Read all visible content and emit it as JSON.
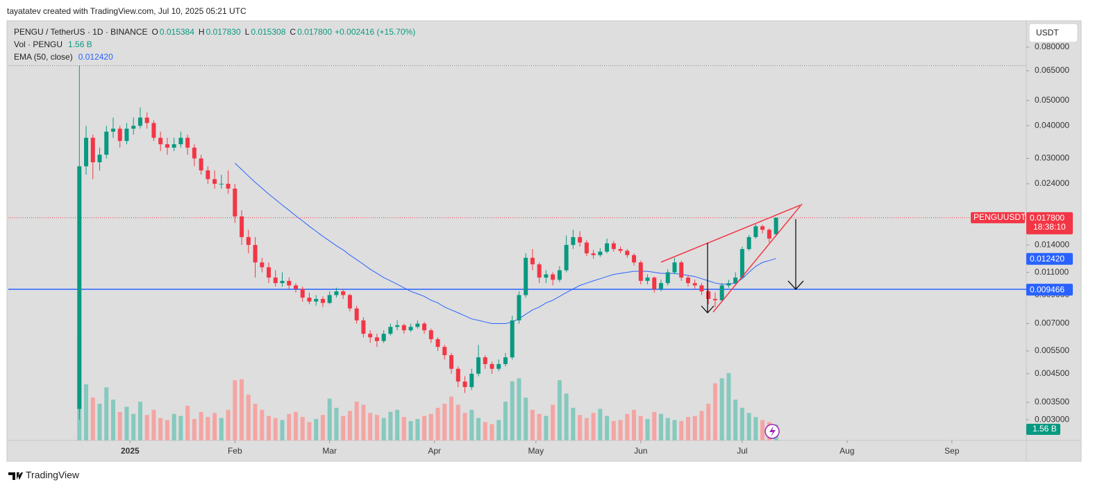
{
  "header": {
    "credit": "tayatatev created with TradingView.com, Jul 10, 2025 05:21 UTC",
    "logo": "TradingView"
  },
  "chart_data": {
    "type": "candlestick",
    "legend": {
      "symbol": "PENGU / TetherUS · 1D · BINANCE",
      "ohlc": [
        {
          "key": "O",
          "value": "0.015384"
        },
        {
          "key": "H",
          "value": "0.017830"
        },
        {
          "key": "L",
          "value": "0.015308"
        },
        {
          "key": "C",
          "value": "0.017800"
        }
      ],
      "change": "+0.002416 (+15.70%)",
      "volume_name": "Vol · PENGU",
      "volume_value": "1.56 B",
      "ema_name": "EMA (50, close)",
      "ema_value": "0.012420"
    },
    "currency": "USDT",
    "log_scale": true,
    "grid": false,
    "up_color": "#089981",
    "down_color": "#f23645",
    "volume_up_color": "#86c9be",
    "volume_down_color": "#f4a5a3",
    "ema_color": "#2962ff",
    "hline_color": "#2962ff",
    "ylim": [
      0.0025,
      0.1009
    ],
    "yticks": [
      {
        "value": 0.08,
        "label": "0.080000"
      },
      {
        "value": 0.065,
        "label": "0.065000"
      },
      {
        "value": 0.05,
        "label": "0.050000"
      },
      {
        "value": 0.04,
        "label": "0.040000"
      },
      {
        "value": 0.03,
        "label": "0.030000"
      },
      {
        "value": 0.024,
        "label": "0.024000"
      },
      {
        "value": 0.014,
        "label": "0.014000"
      },
      {
        "value": 0.011,
        "label": "0.011000"
      },
      {
        "value": 0.009,
        "label": "0.009000"
      },
      {
        "value": 0.007,
        "label": "0.007000"
      },
      {
        "value": 0.0055,
        "label": "0.005500"
      },
      {
        "value": 0.0045,
        "label": "0.004500"
      },
      {
        "value": 0.0035,
        "label": "0.003500"
      },
      {
        "value": 0.003,
        "label": "0.003000"
      }
    ],
    "xlim": [
      -10.5,
      140
    ],
    "xticks": [
      {
        "value": 7.5,
        "label": "2025"
      },
      {
        "value": 23,
        "label": "Feb"
      },
      {
        "value": 37,
        "label": "Mar"
      },
      {
        "value": 52.5,
        "label": "Apr"
      },
      {
        "value": 67.5,
        "label": "May"
      },
      {
        "value": 83,
        "label": "Jun"
      },
      {
        "value": 98,
        "label": "Jul"
      },
      {
        "value": 113.5,
        "label": "Aug"
      },
      {
        "value": 129,
        "label": "Sep"
      }
    ],
    "categories": [
      null,
      null,
      null,
      null,
      null,
      null,
      null,
      null,
      null,
      null,
      null,
      null,
      null,
      null,
      null,
      null,
      null,
      null,
      null,
      null,
      null,
      null,
      null,
      null,
      null,
      null,
      null,
      null,
      null,
      null,
      null,
      null,
      null,
      null,
      null,
      null,
      null,
      null,
      null,
      null,
      null,
      null,
      null,
      null,
      null,
      null,
      null,
      null,
      null,
      null,
      null,
      null,
      null,
      null,
      null,
      null,
      null,
      null,
      null,
      null,
      null,
      null,
      null,
      null,
      null,
      null,
      null,
      null,
      null,
      null,
      null,
      null,
      null,
      null,
      null,
      null,
      null,
      null,
      null,
      null,
      null,
      null,
      null,
      null,
      null,
      null,
      null,
      null,
      null,
      null,
      null,
      null,
      null,
      null,
      null,
      null,
      null,
      null,
      null,
      null,
      null,
      null,
      null,
      null
    ],
    "ohlc": [
      [
        0.0033,
        0.068,
        0.003,
        0.028
      ],
      [
        0.028,
        0.04,
        0.026,
        0.036
      ],
      [
        0.036,
        0.037,
        0.025,
        0.029
      ],
      [
        0.029,
        0.033,
        0.027,
        0.031
      ],
      [
        0.031,
        0.04,
        0.03,
        0.038
      ],
      [
        0.038,
        0.043,
        0.036,
        0.039
      ],
      [
        0.039,
        0.04,
        0.033,
        0.035
      ],
      [
        0.035,
        0.041,
        0.034,
        0.039
      ],
      [
        0.039,
        0.043,
        0.037,
        0.04
      ],
      [
        0.04,
        0.047,
        0.039,
        0.043
      ],
      [
        0.043,
        0.045,
        0.039,
        0.041
      ],
      [
        0.041,
        0.042,
        0.035,
        0.036
      ],
      [
        0.036,
        0.038,
        0.032,
        0.034
      ],
      [
        0.034,
        0.036,
        0.031,
        0.033
      ],
      [
        0.033,
        0.036,
        0.032,
        0.034
      ],
      [
        0.034,
        0.038,
        0.033,
        0.036
      ],
      [
        0.036,
        0.037,
        0.031,
        0.033
      ],
      [
        0.033,
        0.034,
        0.028,
        0.03
      ],
      [
        0.03,
        0.031,
        0.026,
        0.027
      ],
      [
        0.027,
        0.028,
        0.024,
        0.025
      ],
      [
        0.025,
        0.027,
        0.023,
        0.024
      ],
      [
        0.024,
        0.026,
        0.023,
        0.024
      ],
      [
        0.024,
        0.027,
        0.022,
        0.023
      ],
      [
        0.023,
        0.024,
        0.017,
        0.018
      ],
      [
        0.018,
        0.019,
        0.014,
        0.015
      ],
      [
        0.015,
        0.016,
        0.013,
        0.014
      ],
      [
        0.014,
        0.015,
        0.0105,
        0.012
      ],
      [
        0.012,
        0.0125,
        0.011,
        0.0115
      ],
      [
        0.0115,
        0.012,
        0.01,
        0.0105
      ],
      [
        0.0105,
        0.0112,
        0.0097,
        0.01
      ],
      [
        0.01,
        0.011,
        0.0097,
        0.0102
      ],
      [
        0.0102,
        0.0105,
        0.0095,
        0.0098
      ],
      [
        0.0098,
        0.01,
        0.0092,
        0.0095
      ],
      [
        0.0095,
        0.0097,
        0.0085,
        0.0088
      ],
      [
        0.0088,
        0.0092,
        0.0083,
        0.0085
      ],
      [
        0.0085,
        0.009,
        0.0082,
        0.0087
      ],
      [
        0.0087,
        0.0089,
        0.0081,
        0.0084
      ],
      [
        0.0084,
        0.0093,
        0.0083,
        0.009
      ],
      [
        0.009,
        0.0096,
        0.0088,
        0.0093
      ],
      [
        0.0093,
        0.0095,
        0.0087,
        0.009
      ],
      [
        0.009,
        0.0091,
        0.0078,
        0.008
      ],
      [
        0.008,
        0.0082,
        0.007,
        0.0072
      ],
      [
        0.0072,
        0.0074,
        0.0062,
        0.0064
      ],
      [
        0.0064,
        0.0066,
        0.0059,
        0.0062
      ],
      [
        0.0062,
        0.0064,
        0.0057,
        0.006
      ],
      [
        0.006,
        0.0066,
        0.0059,
        0.0064
      ],
      [
        0.0064,
        0.007,
        0.0063,
        0.0068
      ],
      [
        0.0068,
        0.0072,
        0.0066,
        0.0069
      ],
      [
        0.0069,
        0.007,
        0.0064,
        0.0066
      ],
      [
        0.0066,
        0.007,
        0.0065,
        0.0068
      ],
      [
        0.0068,
        0.0072,
        0.0067,
        0.007
      ],
      [
        0.007,
        0.0071,
        0.0064,
        0.0066
      ],
      [
        0.0066,
        0.0067,
        0.0059,
        0.0061
      ],
      [
        0.0061,
        0.0062,
        0.0055,
        0.0057
      ],
      [
        0.0057,
        0.0058,
        0.0051,
        0.0053
      ],
      [
        0.0053,
        0.0054,
        0.0045,
        0.0047
      ],
      [
        0.0047,
        0.0048,
        0.004,
        0.0042
      ],
      [
        0.0042,
        0.0044,
        0.0038,
        0.004
      ],
      [
        0.004,
        0.0047,
        0.0039,
        0.0045
      ],
      [
        0.0045,
        0.0058,
        0.0044,
        0.0052
      ],
      [
        0.0052,
        0.0053,
        0.0047,
        0.0049
      ],
      [
        0.0049,
        0.005,
        0.0045,
        0.0047
      ],
      [
        0.0047,
        0.0051,
        0.0046,
        0.0049
      ],
      [
        0.0049,
        0.0054,
        0.0048,
        0.0052
      ],
      [
        0.0052,
        0.0075,
        0.0051,
        0.0072
      ],
      [
        0.0072,
        0.0093,
        0.007,
        0.009
      ],
      [
        0.009,
        0.013,
        0.0088,
        0.0125
      ],
      [
        0.0125,
        0.0135,
        0.0112,
        0.0118
      ],
      [
        0.0118,
        0.012,
        0.01,
        0.0105
      ],
      [
        0.0105,
        0.0112,
        0.01,
        0.0108
      ],
      [
        0.0108,
        0.011,
        0.0098,
        0.0103
      ],
      [
        0.0103,
        0.0116,
        0.0101,
        0.0112
      ],
      [
        0.0112,
        0.0152,
        0.011,
        0.014
      ],
      [
        0.014,
        0.016,
        0.0135,
        0.015
      ],
      [
        0.015,
        0.0158,
        0.0138,
        0.0143
      ],
      [
        0.0143,
        0.0146,
        0.0127,
        0.013
      ],
      [
        0.013,
        0.0134,
        0.0124,
        0.0128
      ],
      [
        0.0128,
        0.0136,
        0.0126,
        0.0132
      ],
      [
        0.0132,
        0.0148,
        0.013,
        0.0142
      ],
      [
        0.0142,
        0.0145,
        0.0132,
        0.0135
      ],
      [
        0.0135,
        0.0138,
        0.013,
        0.0133
      ],
      [
        0.0133,
        0.0135,
        0.0125,
        0.0128
      ],
      [
        0.0128,
        0.013,
        0.0117,
        0.012
      ],
      [
        0.012,
        0.0122,
        0.0099,
        0.0102
      ],
      [
        0.0102,
        0.0108,
        0.0099,
        0.0105
      ],
      [
        0.0105,
        0.0106,
        0.0092,
        0.0095
      ],
      [
        0.0095,
        0.0103,
        0.0093,
        0.01
      ],
      [
        0.01,
        0.0113,
        0.0098,
        0.011
      ],
      [
        0.011,
        0.0125,
        0.0108,
        0.012
      ],
      [
        0.012,
        0.0122,
        0.0102,
        0.0105
      ],
      [
        0.0105,
        0.0107,
        0.0097,
        0.01
      ],
      [
        0.01,
        0.0103,
        0.0095,
        0.0098
      ],
      [
        0.0098,
        0.01,
        0.009,
        0.0093
      ],
      [
        0.0093,
        0.0095,
        0.0083,
        0.0087
      ],
      [
        0.0087,
        0.0092,
        0.0081,
        0.0086
      ],
      [
        0.0086,
        0.01,
        0.0085,
        0.0098
      ],
      [
        0.0098,
        0.0103,
        0.0096,
        0.01
      ],
      [
        0.01,
        0.011,
        0.0098,
        0.0105
      ],
      [
        0.0105,
        0.0138,
        0.0104,
        0.0135
      ],
      [
        0.0135,
        0.0153,
        0.0133,
        0.015
      ],
      [
        0.015,
        0.0168,
        0.0148,
        0.0165
      ],
      [
        0.0165,
        0.0167,
        0.0155,
        0.016
      ],
      [
        0.016,
        0.0162,
        0.0143,
        0.0148
      ],
      [
        0.015384,
        0.01783,
        0.015308,
        0.0178
      ]
    ],
    "volume": [
      10.2,
      5.5,
      4.2,
      3.6,
      5.2,
      4.0,
      2.8,
      3.3,
      2.6,
      3.8,
      2.5,
      3.0,
      2.2,
      2.0,
      2.6,
      2.4,
      3.4,
      2.1,
      2.8,
      2.3,
      2.7,
      2.2,
      3.0,
      5.9,
      6.0,
      4.5,
      3.6,
      3.0,
      2.4,
      2.2,
      2.0,
      2.6,
      2.8,
      2.3,
      1.8,
      2.1,
      2.5,
      4.1,
      3.2,
      2.4,
      2.9,
      3.8,
      3.5,
      2.7,
      2.5,
      2.2,
      2.8,
      3.0,
      2.3,
      1.9,
      2.1,
      2.4,
      2.6,
      3.2,
      3.6,
      4.3,
      3.5,
      2.7,
      3.0,
      2.2,
      1.8,
      1.6,
      2.0,
      3.8,
      5.8,
      6.1,
      4.2,
      3.0,
      2.6,
      2.4,
      3.5,
      5.9,
      4.6,
      3.2,
      2.5,
      2.2,
      2.7,
      3.1,
      2.4,
      1.9,
      2.0,
      2.6,
      3.0,
      2.4,
      2.1,
      2.8,
      2.6,
      2.2,
      2.0,
      1.9,
      2.3,
      2.4,
      2.9,
      3.6,
      5.6,
      6.1,
      6.6,
      4.0,
      3.2,
      2.7,
      2.3,
      2.0,
      1.8,
      1.56
    ],
    "ema": [
      null,
      null,
      null,
      null,
      null,
      null,
      null,
      null,
      null,
      null,
      null,
      null,
      null,
      null,
      null,
      null,
      null,
      null,
      null,
      null,
      null,
      null,
      null,
      0.0288,
      0.0272,
      0.0257,
      0.0243,
      0.0231,
      0.0219,
      0.0209,
      0.0199,
      0.019,
      0.0181,
      0.0173,
      0.0165,
      0.0158,
      0.0151,
      0.0145,
      0.0139,
      0.0134,
      0.0128,
      0.0123,
      0.0118,
      0.0113,
      0.0109,
      0.0105,
      0.0102,
      0.0099,
      0.0096,
      0.0093,
      0.0091,
      0.0089,
      0.0086,
      0.0084,
      0.0081,
      0.0079,
      0.0077,
      0.0075,
      0.0073,
      0.0072,
      0.0071,
      0.007,
      0.007,
      0.007,
      0.0071,
      0.0073,
      0.0076,
      0.0079,
      0.0081,
      0.0084,
      0.0086,
      0.0089,
      0.0092,
      0.0095,
      0.0098,
      0.01,
      0.0102,
      0.0104,
      0.0106,
      0.0108,
      0.0109,
      0.011,
      0.0111,
      0.0111,
      0.0111,
      0.011,
      0.0109,
      0.0109,
      0.0109,
      0.0108,
      0.0107,
      0.0106,
      0.0104,
      0.0102,
      0.01,
      0.0099,
      0.0099,
      0.01,
      0.0104,
      0.011,
      0.0116,
      0.012,
      0.0122,
      0.01242
    ],
    "last_price": {
      "value": 0.0178,
      "label": "0.017800",
      "symbol": "PENGUUSDT",
      "countdown": "18:38:10"
    },
    "ema_price": {
      "value": 0.01242,
      "label": "0.012420"
    },
    "hline": {
      "value": 0.009466,
      "label": "0.009466"
    }
  }
}
